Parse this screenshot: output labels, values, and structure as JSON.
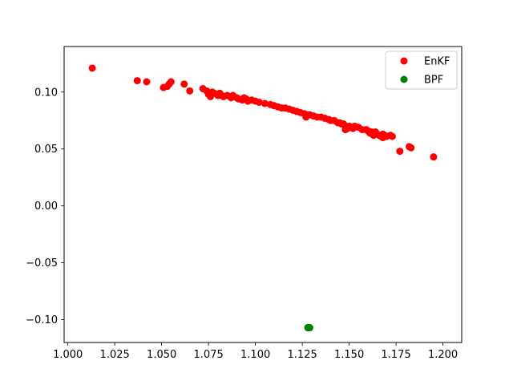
{
  "chart_data": {
    "type": "scatter",
    "title": "",
    "xlabel": "",
    "ylabel": "",
    "xlim": [
      0.998,
      1.21
    ],
    "ylim": [
      -0.12,
      0.14
    ],
    "grid": false,
    "legend_position": "top-right",
    "x_ticks": [
      "1.000",
      "1.025",
      "1.050",
      "1.075",
      "1.100",
      "1.125",
      "1.150",
      "1.175",
      "1.200"
    ],
    "x_tick_values": [
      1.0,
      1.025,
      1.05,
      1.075,
      1.1,
      1.125,
      1.15,
      1.175,
      1.2
    ],
    "y_ticks": [
      "−0.10",
      "−0.05",
      "0.00",
      "0.05",
      "0.10"
    ],
    "y_tick_values": [
      -0.1,
      -0.05,
      0.0,
      0.05,
      0.1
    ],
    "series": [
      {
        "name": "EnKF",
        "color": "#ff0000",
        "points": [
          [
            1.013,
            0.121
          ],
          [
            1.037,
            0.11
          ],
          [
            1.042,
            0.109
          ],
          [
            1.051,
            0.104
          ],
          [
            1.053,
            0.105
          ],
          [
            1.054,
            0.107
          ],
          [
            1.055,
            0.109
          ],
          [
            1.062,
            0.107
          ],
          [
            1.065,
            0.101
          ],
          [
            1.072,
            0.103
          ],
          [
            1.074,
            0.101
          ],
          [
            1.075,
            0.098
          ],
          [
            1.076,
            0.096
          ],
          [
            1.077,
            0.1
          ],
          [
            1.078,
            0.099
          ],
          [
            1.08,
            0.097
          ],
          [
            1.081,
            0.099
          ],
          [
            1.082,
            0.097
          ],
          [
            1.083,
            0.096
          ],
          [
            1.085,
            0.097
          ],
          [
            1.087,
            0.095
          ],
          [
            1.088,
            0.097
          ],
          [
            1.09,
            0.095
          ],
          [
            1.091,
            0.094
          ],
          [
            1.093,
            0.093
          ],
          [
            1.094,
            0.095
          ],
          [
            1.095,
            0.094
          ],
          [
            1.096,
            0.092
          ],
          [
            1.098,
            0.093
          ],
          [
            1.1,
            0.092
          ],
          [
            1.102,
            0.091
          ],
          [
            1.105,
            0.09
          ],
          [
            1.108,
            0.089
          ],
          [
            1.11,
            0.088
          ],
          [
            1.112,
            0.087
          ],
          [
            1.114,
            0.086
          ],
          [
            1.116,
            0.086
          ],
          [
            1.118,
            0.085
          ],
          [
            1.12,
            0.084
          ],
          [
            1.122,
            0.083
          ],
          [
            1.124,
            0.082
          ],
          [
            1.126,
            0.081
          ],
          [
            1.127,
            0.078
          ],
          [
            1.128,
            0.08
          ],
          [
            1.129,
            0.08
          ],
          [
            1.131,
            0.079
          ],
          [
            1.133,
            0.078
          ],
          [
            1.135,
            0.078
          ],
          [
            1.137,
            0.077
          ],
          [
            1.139,
            0.076
          ],
          [
            1.14,
            0.075
          ],
          [
            1.142,
            0.075
          ],
          [
            1.144,
            0.073
          ],
          [
            1.145,
            0.073
          ],
          [
            1.146,
            0.072
          ],
          [
            1.147,
            0.072
          ],
          [
            1.148,
            0.07
          ],
          [
            1.148,
            0.067
          ],
          [
            1.149,
            0.068
          ],
          [
            1.15,
            0.07
          ],
          [
            1.151,
            0.069
          ],
          [
            1.152,
            0.068
          ],
          [
            1.153,
            0.07
          ],
          [
            1.155,
            0.069
          ],
          [
            1.157,
            0.067
          ],
          [
            1.159,
            0.067
          ],
          [
            1.16,
            0.066
          ],
          [
            1.161,
            0.064
          ],
          [
            1.162,
            0.065
          ],
          [
            1.163,
            0.062
          ],
          [
            1.164,
            0.065
          ],
          [
            1.165,
            0.063
          ],
          [
            1.166,
            0.062
          ],
          [
            1.167,
            0.061
          ],
          [
            1.168,
            0.063
          ],
          [
            1.168,
            0.06
          ],
          [
            1.169,
            0.062
          ],
          [
            1.17,
            0.061
          ],
          [
            1.172,
            0.062
          ],
          [
            1.173,
            0.061
          ],
          [
            1.177,
            0.048
          ],
          [
            1.182,
            0.052
          ],
          [
            1.183,
            0.051
          ],
          [
            1.195,
            0.043
          ]
        ]
      },
      {
        "name": "BPF",
        "color": "#008000",
        "points": [
          [
            1.128,
            -0.107
          ],
          [
            1.128,
            -0.107
          ],
          [
            1.129,
            -0.107
          ]
        ]
      }
    ]
  }
}
